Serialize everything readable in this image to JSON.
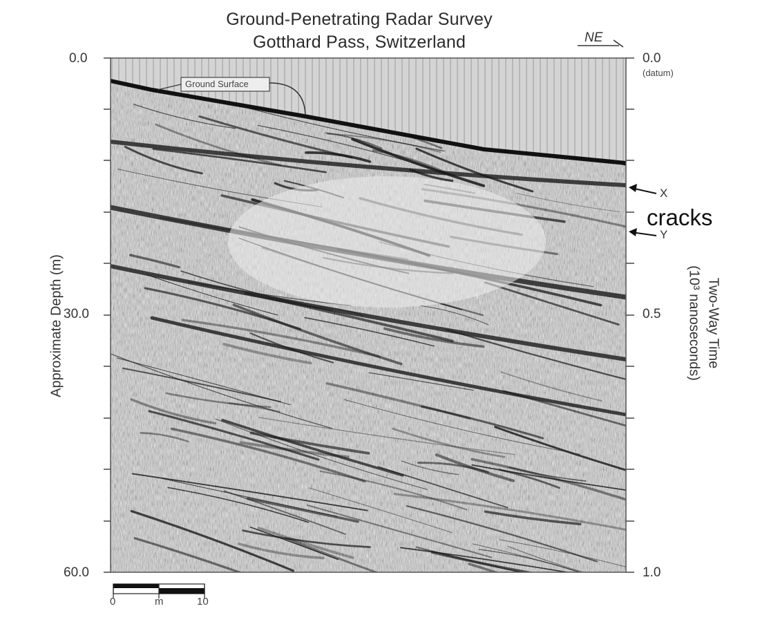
{
  "figure": {
    "title_line1": "Ground-Penetrating Radar Survey",
    "title_line2": "Gotthard Pass, Switzerland",
    "direction_label": "NE",
    "left_axis": {
      "label": "Approximate Depth (m)",
      "ticks": [
        "0.0",
        "30.0",
        "60.0"
      ]
    },
    "right_axis": {
      "label_line1": "Two-Way Time",
      "label_line2": "(10³ nanoseconds)",
      "ticks": [
        "0.0",
        "0.5",
        "1.0"
      ],
      "datum_label": "(datum)"
    },
    "ground_surface_label": "Ground Surface",
    "markers": [
      {
        "letter": "X"
      },
      {
        "letter": "Y"
      }
    ],
    "annotation": "cracks",
    "scale_bar": {
      "start": "0",
      "unit": "m",
      "end": "10"
    }
  }
}
